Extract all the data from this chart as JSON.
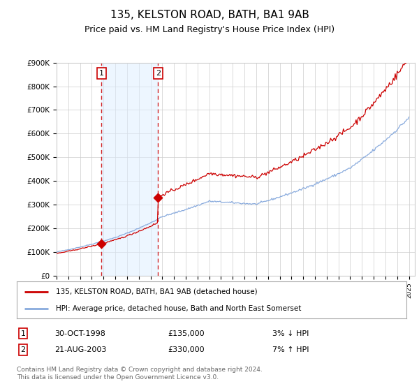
{
  "title": "135, KELSTON ROAD, BATH, BA1 9AB",
  "subtitle": "Price paid vs. HM Land Registry's House Price Index (HPI)",
  "title_fontsize": 11,
  "subtitle_fontsize": 9,
  "ylim": [
    0,
    900000
  ],
  "yticks": [
    0,
    100000,
    200000,
    300000,
    400000,
    500000,
    600000,
    700000,
    800000,
    900000
  ],
  "ytick_labels": [
    "£0",
    "£100K",
    "£200K",
    "£300K",
    "£400K",
    "£500K",
    "£600K",
    "£700K",
    "£800K",
    "£900K"
  ],
  "line1_color": "#cc0000",
  "line2_color": "#88aadd",
  "point1_date": 1998.83,
  "point1_value": 135000,
  "point2_date": 2003.64,
  "point2_value": 330000,
  "shade_color": "#ddeeff",
  "shade_alpha": 0.5,
  "grid_color": "#cccccc",
  "background_color": "#ffffff",
  "legend1_label": "135, KELSTON ROAD, BATH, BA1 9AB (detached house)",
  "legend2_label": "HPI: Average price, detached house, Bath and North East Somerset",
  "table_row1": [
    "1",
    "30-OCT-1998",
    "£135,000",
    "3% ↓ HPI"
  ],
  "table_row2": [
    "2",
    "21-AUG-2003",
    "£330,000",
    "7% ↑ HPI"
  ],
  "footer": "Contains HM Land Registry data © Crown copyright and database right 2024.\nThis data is licensed under the Open Government Licence v3.0.",
  "box1_color": "#cc0000",
  "xlim_left": 1995,
  "xlim_right": 2025.5
}
